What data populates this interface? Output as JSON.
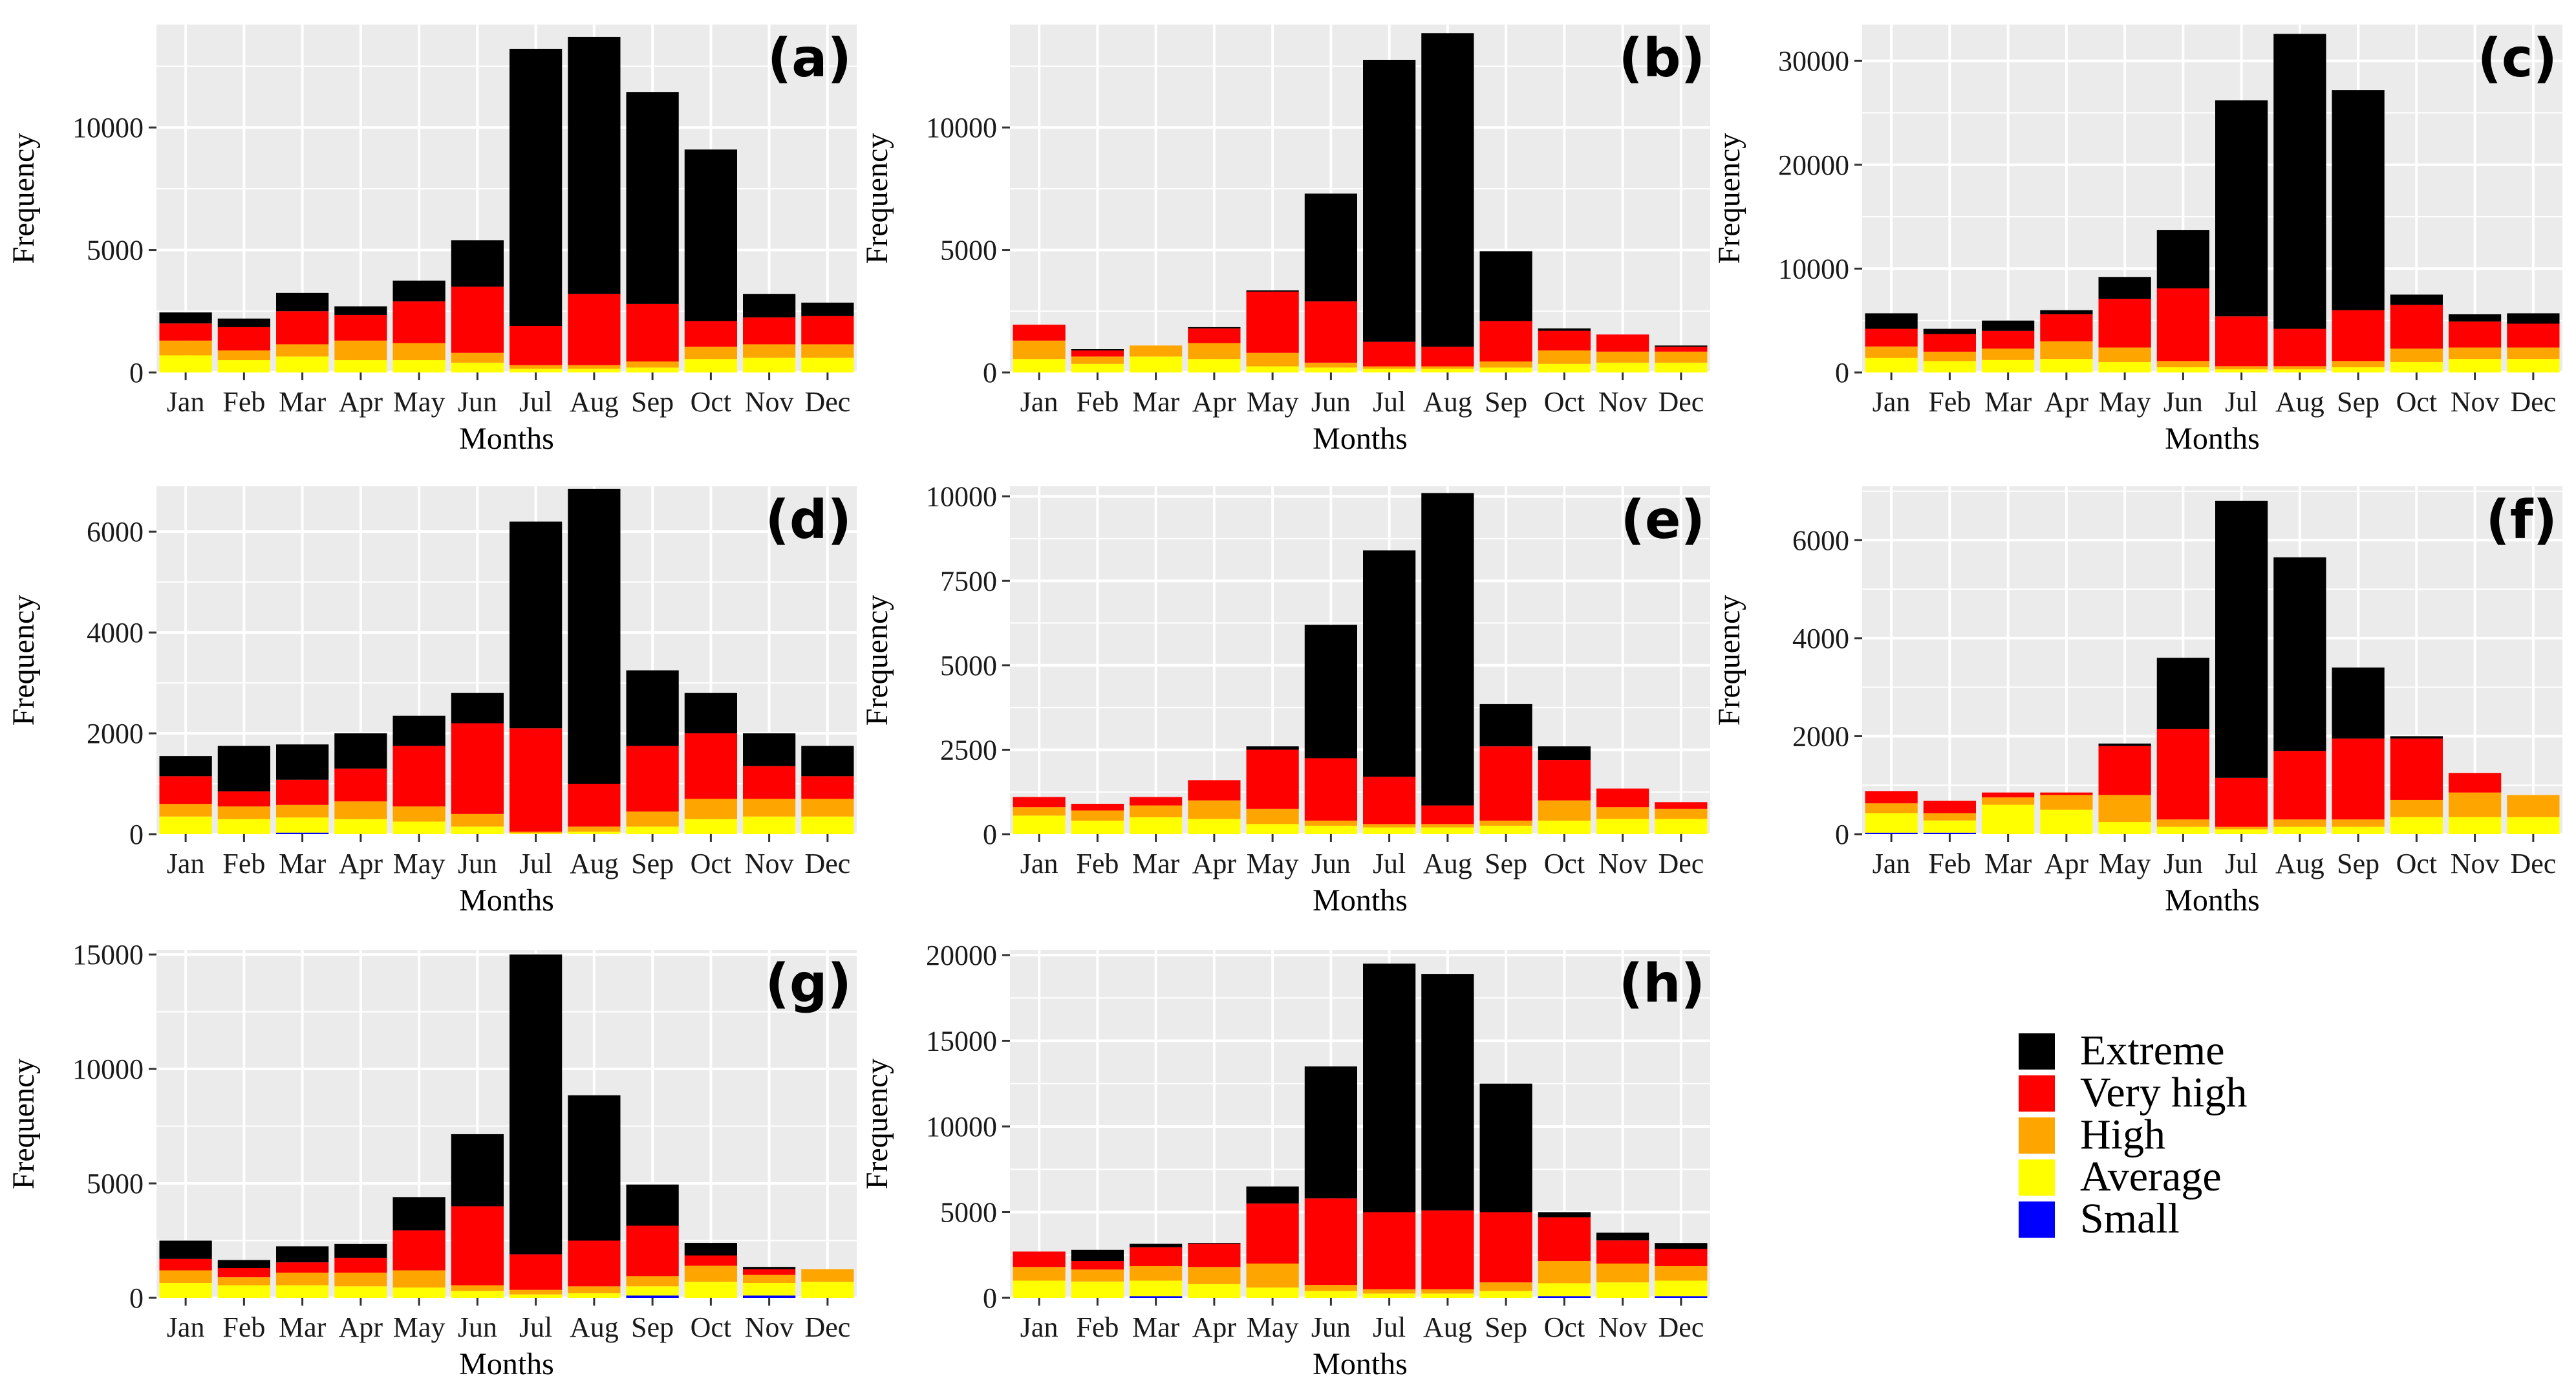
{
  "chart_data": [
    {
      "type": "bar",
      "stacked": true,
      "panel_label": "(a)",
      "xlabel": "Months",
      "ylabel": "Frequency",
      "ylim": [
        0,
        14200
      ],
      "yticks": [
        0,
        5000,
        10000
      ],
      "categories": [
        "Jan",
        "Feb",
        "Mar",
        "Apr",
        "May",
        "Jun",
        "Jul",
        "Aug",
        "Sep",
        "Oct",
        "Nov",
        "Dec"
      ],
      "series": [
        {
          "name": "Small",
          "values": [
            0,
            0,
            0,
            0,
            0,
            0,
            0,
            0,
            0,
            0,
            0,
            0
          ]
        },
        {
          "name": "Average",
          "values": [
            700,
            500,
            650,
            500,
            500,
            400,
            150,
            150,
            200,
            550,
            600,
            600
          ]
        },
        {
          "name": "High",
          "values": [
            600,
            400,
            500,
            800,
            700,
            400,
            150,
            150,
            250,
            500,
            550,
            550
          ]
        },
        {
          "name": "Very high",
          "values": [
            700,
            950,
            1350,
            1050,
            1700,
            2700,
            1600,
            2900,
            2350,
            1050,
            1100,
            1150
          ]
        },
        {
          "name": "Extreme",
          "values": [
            450,
            350,
            750,
            350,
            850,
            1900,
            11300,
            10500,
            8650,
            7000,
            950,
            550
          ]
        }
      ]
    },
    {
      "type": "bar",
      "stacked": true,
      "panel_label": "(b)",
      "xlabel": "Months",
      "ylabel": "Frequency",
      "ylim": [
        0,
        14200
      ],
      "yticks": [
        0,
        5000,
        10000
      ],
      "categories": [
        "Jan",
        "Feb",
        "Mar",
        "Apr",
        "May",
        "Jun",
        "Jul",
        "Aug",
        "Sep",
        "Oct",
        "Nov",
        "Dec"
      ],
      "series": [
        {
          "name": "Small",
          "values": [
            0,
            0,
            0,
            0,
            0,
            0,
            0,
            0,
            0,
            0,
            0,
            0
          ]
        },
        {
          "name": "Average",
          "values": [
            550,
            350,
            650,
            550,
            250,
            200,
            150,
            150,
            200,
            350,
            400,
            400
          ]
        },
        {
          "name": "High",
          "values": [
            750,
            300,
            450,
            650,
            550,
            200,
            100,
            100,
            250,
            550,
            450,
            450
          ]
        },
        {
          "name": "Very high",
          "values": [
            650,
            250,
            0,
            600,
            2500,
            2500,
            1000,
            800,
            1650,
            800,
            700,
            200
          ]
        },
        {
          "name": "Extreme",
          "values": [
            0,
            50,
            0,
            50,
            50,
            4400,
            11500,
            12800,
            2850,
            100,
            0,
            50
          ]
        }
      ]
    },
    {
      "type": "bar",
      "stacked": true,
      "panel_label": "(c)",
      "xlabel": "Months",
      "ylabel": "Frequency",
      "ylim": [
        0,
        33500
      ],
      "yticks": [
        0,
        10000,
        20000,
        30000
      ],
      "categories": [
        "Jan",
        "Feb",
        "Mar",
        "Apr",
        "May",
        "Jun",
        "Jul",
        "Aug",
        "Sep",
        "Oct",
        "Nov",
        "Dec"
      ],
      "series": [
        {
          "name": "Small",
          "values": [
            0,
            0,
            0,
            0,
            0,
            0,
            0,
            0,
            0,
            0,
            0,
            0
          ]
        },
        {
          "name": "Average",
          "values": [
            1400,
            1100,
            1200,
            1300,
            1000,
            500,
            300,
            300,
            500,
            1000,
            1300,
            1300
          ]
        },
        {
          "name": "High",
          "values": [
            1100,
            900,
            1100,
            1700,
            1400,
            600,
            300,
            300,
            600,
            1300,
            1100,
            1100
          ]
        },
        {
          "name": "Very high",
          "values": [
            1700,
            1700,
            1700,
            2600,
            4700,
            7000,
            4800,
            3600,
            4900,
            4200,
            2500,
            2300
          ]
        },
        {
          "name": "Extreme",
          "values": [
            1500,
            500,
            1000,
            400,
            2100,
            5600,
            20800,
            28400,
            21200,
            1000,
            700,
            1000
          ]
        }
      ]
    },
    {
      "type": "bar",
      "stacked": true,
      "panel_label": "(d)",
      "xlabel": "Months",
      "ylabel": "Frequency",
      "ylim": [
        0,
        6900
      ],
      "yticks": [
        0,
        2000,
        4000,
        6000
      ],
      "categories": [
        "Jan",
        "Feb",
        "Mar",
        "Apr",
        "May",
        "Jun",
        "Jul",
        "Aug",
        "Sep",
        "Oct",
        "Nov",
        "Dec"
      ],
      "series": [
        {
          "name": "Small",
          "values": [
            0,
            0,
            30,
            0,
            0,
            0,
            0,
            0,
            0,
            0,
            0,
            0
          ]
        },
        {
          "name": "Average",
          "values": [
            350,
            300,
            300,
            300,
            250,
            150,
            20,
            50,
            150,
            300,
            350,
            350
          ]
        },
        {
          "name": "High",
          "values": [
            250,
            250,
            250,
            350,
            300,
            250,
            30,
            100,
            300,
            400,
            350,
            350
          ]
        },
        {
          "name": "Very high",
          "values": [
            550,
            300,
            500,
            650,
            1200,
            1800,
            2050,
            850,
            1300,
            1300,
            650,
            450
          ]
        },
        {
          "name": "Extreme",
          "values": [
            400,
            900,
            700,
            700,
            600,
            600,
            4100,
            5850,
            1500,
            800,
            650,
            600
          ]
        }
      ]
    },
    {
      "type": "bar",
      "stacked": true,
      "panel_label": "(e)",
      "xlabel": "Months",
      "ylabel": "Frequency",
      "ylim": [
        0,
        10300
      ],
      "yticks": [
        0,
        2500,
        5000,
        7500,
        10000
      ],
      "categories": [
        "Jan",
        "Feb",
        "Mar",
        "Apr",
        "May",
        "Jun",
        "Jul",
        "Aug",
        "Sep",
        "Oct",
        "Nov",
        "Dec"
      ],
      "series": [
        {
          "name": "Small",
          "values": [
            0,
            0,
            0,
            0,
            0,
            0,
            0,
            0,
            0,
            0,
            0,
            0
          ]
        },
        {
          "name": "Average",
          "values": [
            550,
            400,
            500,
            450,
            300,
            250,
            200,
            200,
            250,
            400,
            450,
            450
          ]
        },
        {
          "name": "High",
          "values": [
            250,
            300,
            350,
            550,
            450,
            150,
            100,
            100,
            150,
            600,
            350,
            300
          ]
        },
        {
          "name": "Very high",
          "values": [
            300,
            200,
            250,
            600,
            1750,
            1850,
            1400,
            550,
            2200,
            1200,
            550,
            200
          ]
        },
        {
          "name": "Extreme",
          "values": [
            0,
            0,
            0,
            0,
            100,
            3950,
            6700,
            9250,
            1250,
            400,
            0,
            0
          ]
        }
      ]
    },
    {
      "type": "bar",
      "stacked": true,
      "panel_label": "(f)",
      "xlabel": "Months",
      "ylabel": "Frequency",
      "ylim": [
        0,
        7100
      ],
      "yticks": [
        0,
        2000,
        4000,
        6000
      ],
      "categories": [
        "Jan",
        "Feb",
        "Mar",
        "Apr",
        "May",
        "Jun",
        "Jul",
        "Aug",
        "Sep",
        "Oct",
        "Nov",
        "Dec"
      ],
      "series": [
        {
          "name": "Small",
          "values": [
            30,
            30,
            0,
            0,
            0,
            0,
            0,
            0,
            0,
            0,
            0,
            0
          ]
        },
        {
          "name": "Average",
          "values": [
            400,
            250,
            600,
            500,
            250,
            150,
            100,
            150,
            150,
            350,
            350,
            350
          ]
        },
        {
          "name": "High",
          "values": [
            200,
            150,
            150,
            300,
            550,
            150,
            50,
            150,
            150,
            350,
            500,
            450
          ]
        },
        {
          "name": "Very high",
          "values": [
            250,
            250,
            100,
            50,
            1000,
            1850,
            1000,
            1400,
            1650,
            1250,
            400,
            0
          ]
        },
        {
          "name": "Extreme",
          "values": [
            0,
            0,
            0,
            0,
            50,
            1450,
            5650,
            3950,
            1450,
            50,
            0,
            0
          ]
        }
      ]
    },
    {
      "type": "bar",
      "stacked": true,
      "panel_label": "(g)",
      "xlabel": "Months",
      "ylabel": "Frequency",
      "ylim": [
        0,
        15200
      ],
      "yticks": [
        0,
        5000,
        10000,
        15000
      ],
      "categories": [
        "Jan",
        "Feb",
        "Mar",
        "Apr",
        "May",
        "Jun",
        "Jul",
        "Aug",
        "Sep",
        "Oct",
        "Nov",
        "Dec"
      ],
      "series": [
        {
          "name": "Small",
          "values": [
            0,
            0,
            0,
            0,
            0,
            0,
            0,
            0,
            100,
            0,
            100,
            0
          ]
        },
        {
          "name": "Average",
          "values": [
            650,
            550,
            550,
            500,
            450,
            300,
            150,
            200,
            400,
            700,
            550,
            700
          ]
        },
        {
          "name": "High",
          "values": [
            550,
            350,
            550,
            600,
            750,
            250,
            200,
            300,
            450,
            700,
            350,
            550
          ]
        },
        {
          "name": "Very high",
          "values": [
            500,
            400,
            450,
            650,
            1750,
            3450,
            1550,
            2000,
            2200,
            450,
            250,
            0
          ]
        },
        {
          "name": "Extreme",
          "values": [
            800,
            350,
            700,
            600,
            1450,
            3150,
            13100,
            6350,
            1800,
            550,
            100,
            0
          ]
        }
      ]
    },
    {
      "type": "bar",
      "stacked": true,
      "panel_label": "(h)",
      "xlabel": "Months",
      "ylabel": "Frequency",
      "ylim": [
        0,
        20300
      ],
      "yticks": [
        0,
        5000,
        10000,
        15000,
        20000
      ],
      "categories": [
        "Jan",
        "Feb",
        "Mar",
        "Apr",
        "May",
        "Jun",
        "Jul",
        "Aug",
        "Sep",
        "Oct",
        "Nov",
        "Dec"
      ],
      "series": [
        {
          "name": "Small",
          "values": [
            0,
            0,
            100,
            0,
            0,
            0,
            0,
            0,
            0,
            100,
            0,
            100
          ]
        },
        {
          "name": "Average",
          "values": [
            1000,
            950,
            900,
            800,
            600,
            400,
            250,
            250,
            400,
            750,
            900,
            900
          ]
        },
        {
          "name": "High",
          "values": [
            800,
            700,
            850,
            1000,
            1400,
            350,
            250,
            250,
            500,
            1300,
            1100,
            850
          ]
        },
        {
          "name": "Very high",
          "values": [
            900,
            500,
            1100,
            1350,
            3500,
            5050,
            4500,
            4600,
            4100,
            2550,
            1350,
            1000
          ]
        },
        {
          "name": "Extreme",
          "values": [
            0,
            650,
            200,
            50,
            1000,
            7700,
            14500,
            13800,
            7500,
            300,
            450,
            350
          ]
        }
      ]
    }
  ],
  "legend": {
    "placement": "bottom-right",
    "items": [
      {
        "label": "Extreme",
        "color": "#000000"
      },
      {
        "label": "Very high",
        "color": "#ff0000"
      },
      {
        "label": "High",
        "color": "#ffa500"
      },
      {
        "label": "Average",
        "color": "#ffff00"
      },
      {
        "label": "Small",
        "color": "#0000ff"
      }
    ]
  },
  "colors": {
    "Small": "#0000ff",
    "Average": "#ffff00",
    "High": "#ffa500",
    "Very high": "#ff0000",
    "Extreme": "#000000",
    "panel_background": "#ebebeb",
    "grid": "#ffffff"
  }
}
